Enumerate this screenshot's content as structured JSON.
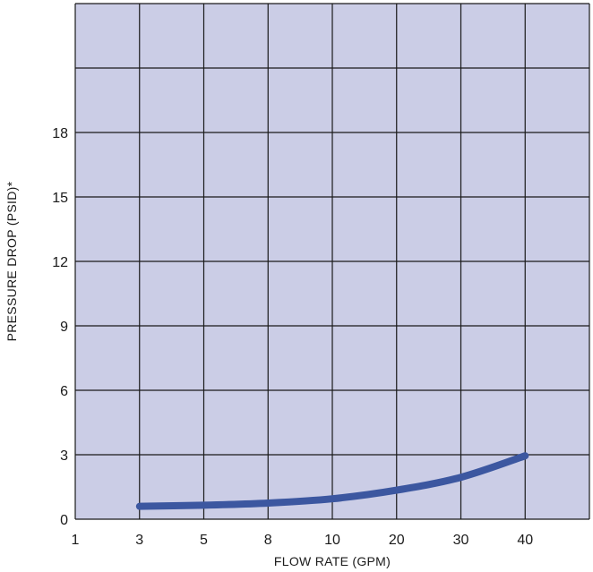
{
  "chart_data": {
    "type": "line",
    "title": "",
    "xlabel": "FLOW RATE (GPM)",
    "ylabel": "PRESSURE DROP (PSID)*",
    "x_ticks": [
      "1",
      "3",
      "5",
      "8",
      "10",
      "20",
      "30",
      "40",
      ""
    ],
    "y_ticks": [
      "0",
      "3",
      "6",
      "9",
      "12",
      "15",
      "18",
      "",
      ""
    ],
    "ylim": [
      0,
      24
    ],
    "grid": true,
    "colors": {
      "plot_bg": "#cbcde6",
      "grid": "#1a1a1a",
      "line": "#3c57a0"
    },
    "series": [
      {
        "name": "",
        "points": [
          {
            "x": 3,
            "y": 0.6
          },
          {
            "x": 5,
            "y": 0.65
          },
          {
            "x": 8,
            "y": 0.75
          },
          {
            "x": 10,
            "y": 0.95
          },
          {
            "x": 20,
            "y": 1.35
          },
          {
            "x": 30,
            "y": 1.95
          },
          {
            "x": 40,
            "y": 2.95
          }
        ]
      }
    ]
  }
}
